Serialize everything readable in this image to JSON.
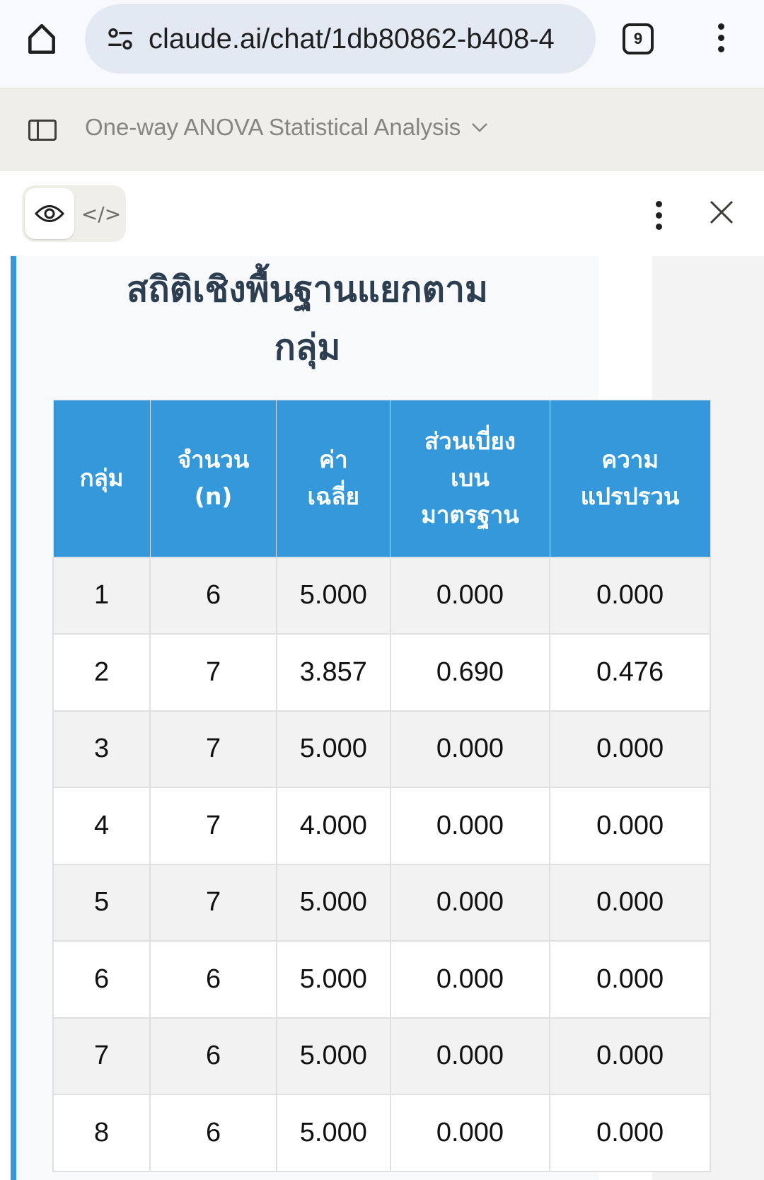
{
  "browser": {
    "url": "claude.ai/chat/1db80862-b408-4",
    "tab_count": "9"
  },
  "titlebar": {
    "title": "One-way ANOVA Statistical Analysis"
  },
  "toolbar": {
    "preview_icon": "eye-icon",
    "code_label": "</>"
  },
  "main": {
    "heading": "สถิติเชิงพื้นฐานแยกตามกลุ่ม",
    "heading_line1": "สถิติเชิงพื้นฐานแยกตาม",
    "heading_line2": "กลุ่ม",
    "accent": "#3498db",
    "table": {
      "headers": [
        "กลุ่ม",
        "จำนวน (n)",
        "ค่าเฉลี่ย",
        "ส่วนเบี่ยงเบนมาตรฐาน",
        "ความแปรปรวน"
      ],
      "rows": [
        [
          "1",
          "6",
          "5.000",
          "0.000",
          "0.000"
        ],
        [
          "2",
          "7",
          "3.857",
          "0.690",
          "0.476"
        ],
        [
          "3",
          "7",
          "5.000",
          "0.000",
          "0.000"
        ],
        [
          "4",
          "7",
          "4.000",
          "0.000",
          "0.000"
        ],
        [
          "5",
          "7",
          "5.000",
          "0.000",
          "0.000"
        ],
        [
          "6",
          "6",
          "5.000",
          "0.000",
          "0.000"
        ],
        [
          "7",
          "6",
          "5.000",
          "0.000",
          "0.000"
        ],
        [
          "8",
          "6",
          "5.000",
          "0.000",
          "0.000"
        ]
      ]
    }
  }
}
